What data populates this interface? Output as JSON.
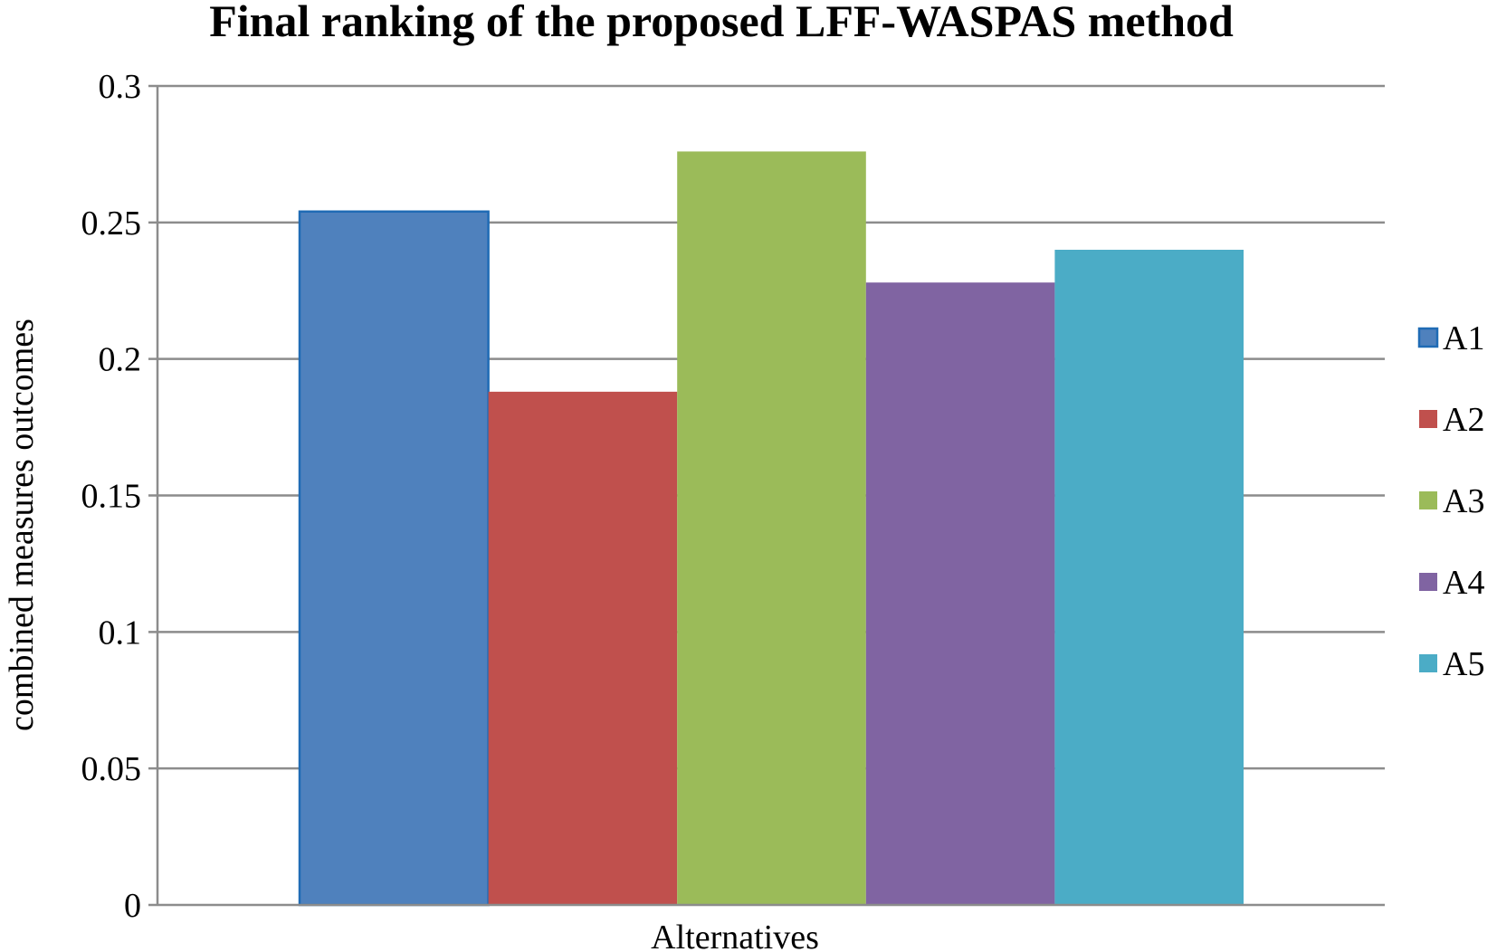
{
  "chart_data": {
    "type": "bar",
    "title": "Final ranking of  the proposed LFF-WASPAS method",
    "xlabel": "Alternatives",
    "ylabel": "combined measures outcomes",
    "categories": [
      "Alternatives"
    ],
    "ylim": [
      0,
      0.3
    ],
    "yticks": [
      "0",
      "0.05",
      "0.1",
      "0.15",
      "0.2",
      "0.25",
      "0.3"
    ],
    "grid": true,
    "legend_position": "right",
    "series": [
      {
        "name": "A1",
        "values": [
          0.254
        ],
        "color": "#4F81BD",
        "border": "#1F6BB5"
      },
      {
        "name": "A2",
        "values": [
          0.188
        ],
        "color": "#C0504D"
      },
      {
        "name": "A3",
        "values": [
          0.276
        ],
        "color": "#9BBB59"
      },
      {
        "name": "A4",
        "values": [
          0.228
        ],
        "color": "#8064A2"
      },
      {
        "name": "A5",
        "values": [
          0.24
        ],
        "color": "#4BACC6"
      }
    ]
  }
}
